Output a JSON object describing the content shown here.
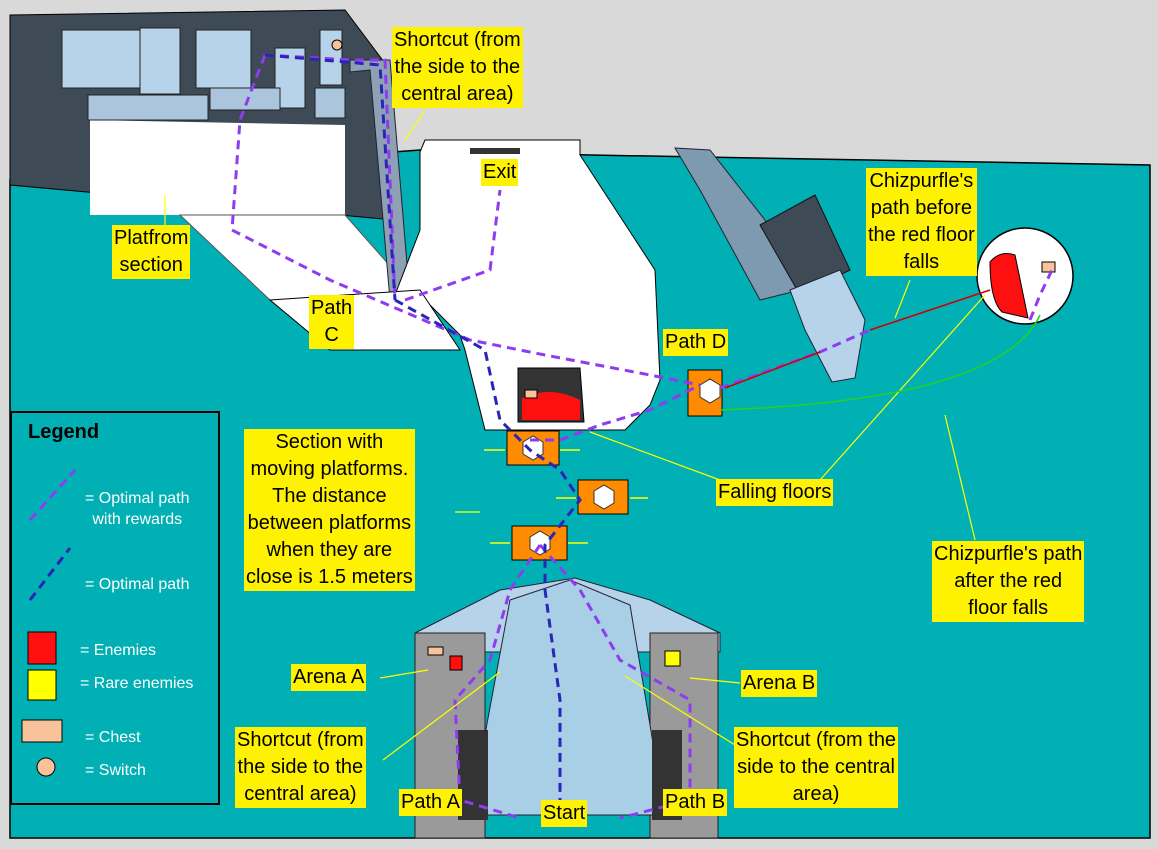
{
  "labels": {
    "shortcut_top": [
      "Shortcut (from",
      "the side to the",
      "central area)"
    ],
    "exit": [
      "Exit"
    ],
    "chiz_before": [
      "Chizpurfle's",
      "path before",
      "the red floor",
      "falls"
    ],
    "platform_section": [
      "Platfrom",
      "section"
    ],
    "path_c": [
      "Path",
      "C"
    ],
    "path_d": [
      "Path D"
    ],
    "moving_platforms": [
      "Section with",
      "moving platforms.",
      "The distance",
      "between platforms",
      "when they are",
      "close is 1.5 meters"
    ],
    "falling_floors": [
      "Falling floors"
    ],
    "chiz_after": [
      "Chizpurfle's path",
      "after the red",
      "floor falls"
    ],
    "arena_a": [
      "Arena A"
    ],
    "arena_b": [
      "Arena B"
    ],
    "shortcut_left": [
      "Shortcut (from",
      "the side to the",
      "central area)"
    ],
    "shortcut_right": [
      "Shortcut (from the",
      "side to the central",
      "area)"
    ],
    "path_a": [
      "Path A"
    ],
    "start": [
      "Start"
    ],
    "path_b": [
      "Path B"
    ]
  },
  "legend": {
    "title": "Legend",
    "items": [
      {
        "icon": "dashed-purple-line-icon",
        "text": [
          "= Optimal path",
          "with rewards"
        ]
      },
      {
        "icon": "dashed-blue-line-icon",
        "text": [
          "= Optimal path"
        ]
      },
      {
        "icon": "red-square-icon",
        "text": [
          "= Enemies"
        ]
      },
      {
        "icon": "yellow-square-icon",
        "text": [
          "= Rare enemies"
        ]
      },
      {
        "icon": "chest-icon",
        "text": [
          "= Chest"
        ]
      },
      {
        "icon": "switch-icon",
        "text": [
          "= Switch"
        ]
      }
    ]
  },
  "colors": {
    "floor": "#00b0b4",
    "optimal_with_rewards": "#8e3cf0",
    "optimal": "#2b24b8",
    "enemy": "#ff2020",
    "rare_enemy": "#ffff00",
    "chest": "#f9c29a",
    "platform": "#ff8c00",
    "label_bg": "#fff200"
  }
}
